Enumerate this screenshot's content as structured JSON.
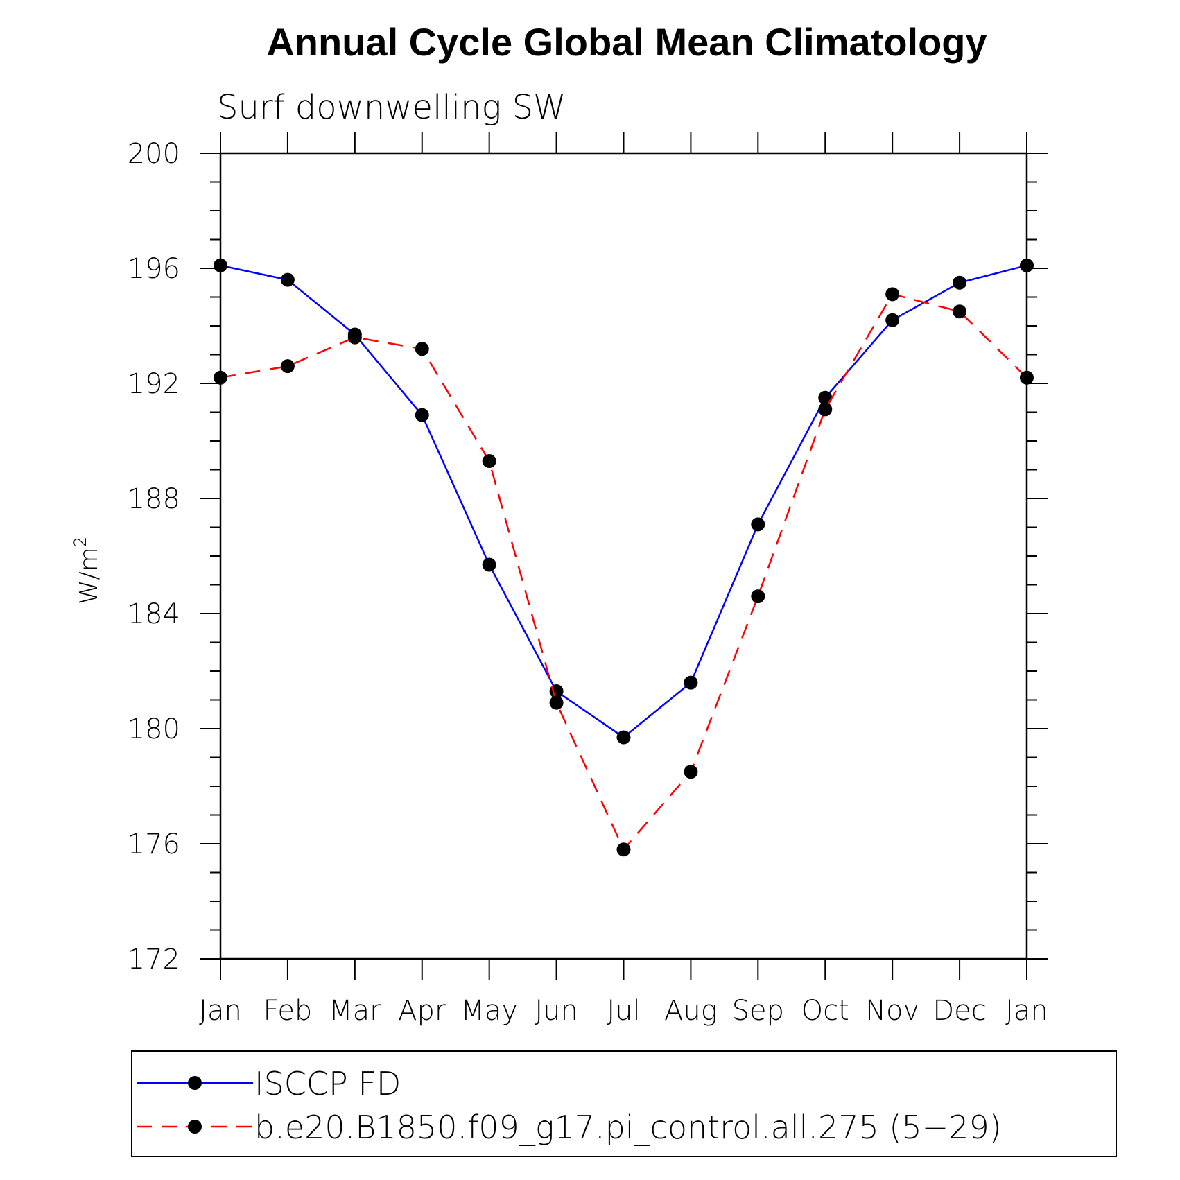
{
  "chart_data": {
    "type": "line",
    "title": "Annual Cycle Global Mean Climatology",
    "subtitle": "Surf downwelling SW",
    "ylabel": "W/m",
    "ylabel_superscript": "2",
    "xlabel": "",
    "categories": [
      "Jan",
      "Feb",
      "Mar",
      "Apr",
      "May",
      "Jun",
      "Jul",
      "Aug",
      "Sep",
      "Oct",
      "Nov",
      "Dec",
      "Jan"
    ],
    "ylim": [
      172,
      200
    ],
    "yticks": [
      172,
      176,
      180,
      184,
      188,
      192,
      196,
      200
    ],
    "grid": false,
    "legend_position": "bottom",
    "series": [
      {
        "name": "ISCCP FD",
        "color": "#0000ff",
        "dash": "solid",
        "marker": "filled-circle",
        "values": [
          196.1,
          195.6,
          193.7,
          190.9,
          185.7,
          181.3,
          179.7,
          181.6,
          187.1,
          191.5,
          194.2,
          195.5,
          196.1
        ]
      },
      {
        "name": "b.e20.B1850.f09_g17.pi_control.all.275 (5−29)",
        "color": "#ff0000",
        "dash": "dashed",
        "marker": "filled-circle",
        "values": [
          192.2,
          192.6,
          193.6,
          193.2,
          189.3,
          180.9,
          175.8,
          178.5,
          184.6,
          191.1,
          195.1,
          194.5,
          192.2
        ]
      }
    ]
  }
}
